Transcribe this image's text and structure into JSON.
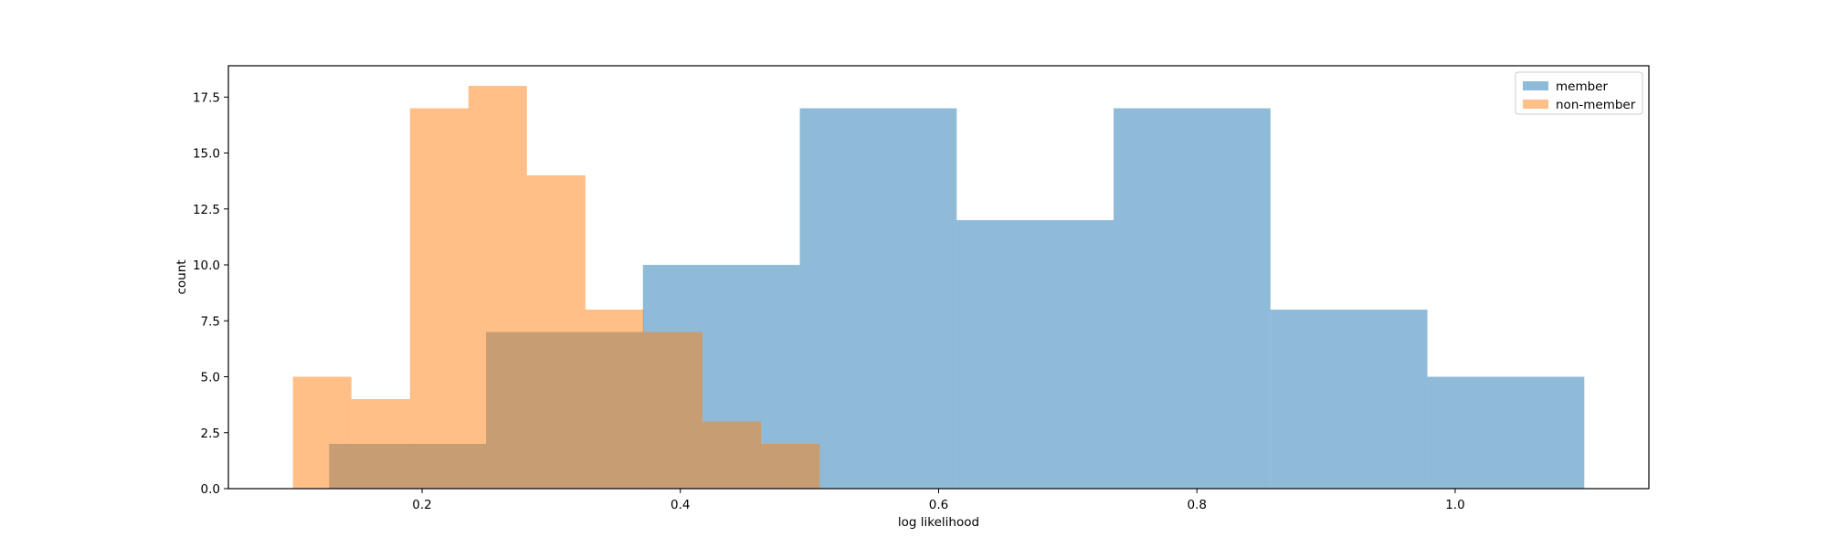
{
  "chart_data": {
    "type": "histogram",
    "xlabel": "log likelihood",
    "ylabel": "count",
    "xlim": [
      0.05,
      1.15
    ],
    "ylim": [
      0,
      18.9
    ],
    "xticks": [
      0.2,
      0.4,
      0.6,
      0.8,
      1.0
    ],
    "xtick_labels": [
      "0.2",
      "0.4",
      "0.6",
      "0.8",
      "1.0"
    ],
    "yticks": [
      0,
      2.5,
      5,
      7.5,
      10,
      12.5,
      15,
      17.5
    ],
    "ytick_labels": [
      "0.0",
      "2.5",
      "5.0",
      "7.5",
      "10.0",
      "12.5",
      "15.0",
      "17.5"
    ],
    "legend_position": "top-right",
    "series": [
      {
        "name": "member",
        "color": "#1f77b4",
        "opacity": 0.5,
        "bin_edges": [
          0.128,
          0.2495,
          0.371,
          0.4925,
          0.614,
          0.7355,
          0.857,
          0.9785,
          1.1
        ],
        "counts": [
          2,
          7,
          10,
          17,
          12,
          17,
          8,
          5
        ]
      },
      {
        "name": "non-member",
        "color": "#ff7f0e",
        "opacity": 0.5,
        "bin_edges": [
          0.1,
          0.1453,
          0.1906,
          0.2359,
          0.2812,
          0.3265,
          0.3718,
          0.4171,
          0.4624,
          0.508
        ],
        "counts": [
          5,
          4,
          17,
          18,
          14,
          8,
          7,
          3,
          2
        ]
      }
    ]
  }
}
